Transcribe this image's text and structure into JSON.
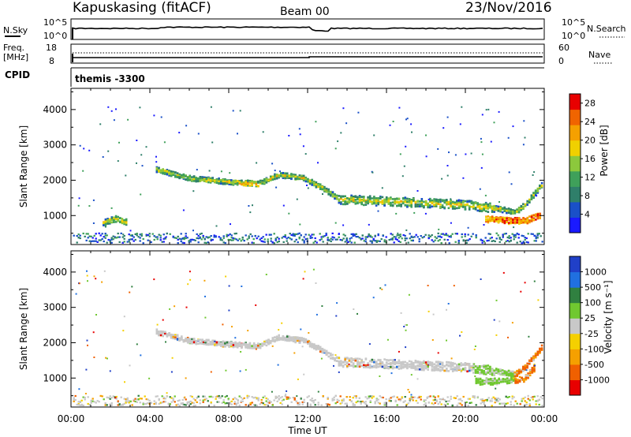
{
  "header": {
    "station": "Kapuskasing (fitACF)",
    "beam": "Beam 00",
    "date": "23/Nov/2016"
  },
  "summary": {
    "nsky_label": "N.Sky",
    "nsky_ticks": [
      "10^5",
      "10^0"
    ],
    "nsearch_label": "N.Search",
    "nsearch_ticks": [
      "10^5",
      "10^0"
    ],
    "freq_label_1": "Freq.",
    "freq_label_2": "[MHz]",
    "freq_ticks": [
      "18",
      "8"
    ],
    "nave_label": "Nave",
    "nave_ticks": [
      "60",
      "0"
    ],
    "cpid_label": "CPID",
    "cpid_value": "themis -3300"
  },
  "colors": {
    "power_scale": [
      "#1a1aff",
      "#1a50c8",
      "#2f7f6a",
      "#3fa05a",
      "#8cc83c",
      "#f0d000",
      "#f5a000",
      "#f06400",
      "#e80000"
    ],
    "velocity_scale": [
      "#2040c8",
      "#2070e0",
      "#308040",
      "#70c830",
      "#c8c8c8",
      "#f5d000",
      "#f5a000",
      "#f06000",
      "#e80000"
    ]
  },
  "chart_data": [
    {
      "type": "heatmap",
      "panel": "power",
      "ylabel": "Slant Range [km]",
      "yticks": [
        "1000",
        "2000",
        "3000",
        "4000"
      ],
      "xticks": [
        "00:00",
        "04:00",
        "08:00",
        "12:00",
        "16:00",
        "20:00",
        "00:00"
      ],
      "xlim": [
        0,
        24
      ],
      "ylim": [
        180,
        4600
      ],
      "colorbar": {
        "label": "Power [dB]",
        "ticks": [
          "4",
          "8",
          "12",
          "16",
          "20",
          "24",
          "28"
        ],
        "range": [
          0,
          30
        ]
      },
      "series": [
        {
          "hours": [
            4.3,
            6.0,
            8.0,
            9.5,
            10.5,
            11.8,
            12.8,
            13.6,
            16.0,
            18.0,
            20.0,
            21.5,
            22.5,
            23.0,
            23.9
          ],
          "range_km": [
            2300,
            2050,
            1950,
            1900,
            2150,
            2050,
            1750,
            1450,
            1400,
            1350,
            1300,
            1200,
            1100,
            1300,
            1900
          ]
        },
        {
          "hours": [
            21.0,
            22.0,
            23.0,
            23.8
          ],
          "range_km": [
            900,
            850,
            850,
            1000
          ]
        },
        {
          "hours": [
            1.6,
            2.2,
            2.8
          ],
          "range_km": [
            800,
            900,
            800
          ]
        }
      ]
    },
    {
      "type": "heatmap",
      "panel": "velocity",
      "ylabel": "Slant Range [km]",
      "yticks": [
        "1000",
        "2000",
        "3000",
        "4000"
      ],
      "xticks": [
        "00:00",
        "04:00",
        "08:00",
        "12:00",
        "16:00",
        "20:00",
        "00:00"
      ],
      "xlim": [
        0,
        24
      ],
      "ylim": [
        180,
        4600
      ],
      "colorbar": {
        "label": "Velocity [m s⁻¹]",
        "ticks": [
          "1000",
          "500",
          "100",
          "25",
          "-25",
          "-100",
          "-500",
          "-1000"
        ]
      },
      "series": [
        {
          "hours": [
            4.3,
            6.0,
            8.0,
            9.5,
            10.5,
            11.8,
            12.8,
            13.6,
            16.0,
            18.0,
            20.0,
            21.5,
            22.5,
            23.0,
            23.9
          ],
          "range_km": [
            2300,
            2050,
            1950,
            1900,
            2150,
            2050,
            1750,
            1450,
            1400,
            1350,
            1300,
            1200,
            1100,
            1300,
            1900
          ]
        },
        {
          "hours": [
            20.5,
            21.5,
            22.5
          ],
          "range_km": [
            900,
            900,
            950
          ]
        },
        {
          "hours": [
            22.5,
            23.0,
            23.5
          ],
          "range_km": [
            900,
            1000,
            1300
          ]
        }
      ]
    }
  ],
  "xlabel": "Time UT"
}
